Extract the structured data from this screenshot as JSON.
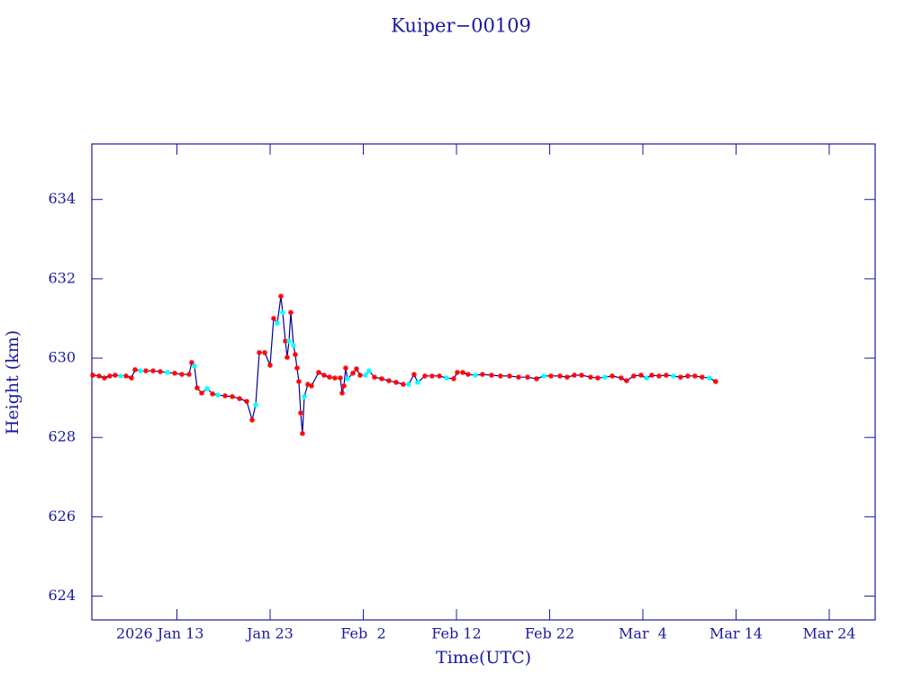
{
  "chart_data": {
    "type": "line",
    "title": "Kuiper−00109",
    "xlabel": "Time(UTC)",
    "ylabel": "Height (km)",
    "xlim": [
      3.87,
      87.93
    ],
    "xticks": [
      {
        "value": 13,
        "label": "2026 Jan 13"
      },
      {
        "value": 23,
        "label": "Jan 23"
      },
      {
        "value": 33,
        "label": "Feb  2"
      },
      {
        "value": 43,
        "label": "Feb 12"
      },
      {
        "value": 53,
        "label": "Feb 22"
      },
      {
        "value": 63,
        "label": "Mar  4"
      },
      {
        "value": 73,
        "label": "Mar 14"
      },
      {
        "value": 83,
        "label": "Mar 24"
      }
    ],
    "ylim": [
      623.4,
      635.4
    ],
    "yticks": [
      624,
      626,
      628,
      630,
      632,
      634
    ],
    "series": [
      {
        "color": "#0000a0",
        "x": [
          3.97,
          4.64,
          5.22,
          5.8,
          6.38,
          6.96,
          7.54,
          8.12,
          8.51,
          9.09,
          9.67,
          10.44,
          11.21,
          11.99,
          12.76,
          13.53,
          14.3,
          14.59,
          14.88,
          15.17,
          15.66,
          16.24,
          16.82,
          17.4,
          18.17,
          18.94,
          19.72,
          20.49,
          21.07,
          21.45,
          21.84,
          22.42,
          23.0,
          23.38,
          23.77,
          24.16,
          24.35,
          24.64,
          24.83,
          25.03,
          25.22,
          25.51,
          25.7,
          25.89,
          26.09,
          26.28,
          26.47,
          26.67,
          27.05,
          27.44,
          28.21,
          28.79,
          29.37,
          29.95,
          30.53,
          30.73,
          30.92,
          31.11,
          31.31,
          31.89,
          32.27,
          32.66,
          33.24,
          33.62,
          34.2,
          34.98,
          35.75,
          36.52,
          37.29,
          37.87,
          38.45,
          38.84,
          39.61,
          40.38,
          41.16,
          41.93,
          42.7,
          43.09,
          43.67,
          44.25,
          45.02,
          45.79,
          46.76,
          47.72,
          48.69,
          49.66,
          50.62,
          51.59,
          52.36,
          53.14,
          54.1,
          54.87,
          55.65,
          56.42,
          57.39,
          58.16,
          58.93,
          59.71,
          60.67,
          61.25,
          62.02,
          62.8,
          63.38,
          63.96,
          64.73,
          65.5,
          66.27,
          67.05,
          67.82,
          68.59,
          69.36,
          70.14,
          70.81
        ],
        "values": [
          629.57,
          629.55,
          629.5,
          629.55,
          629.57,
          629.55,
          629.55,
          629.5,
          629.71,
          629.68,
          629.68,
          629.68,
          629.66,
          629.64,
          629.62,
          629.59,
          629.59,
          629.89,
          629.8,
          629.25,
          629.12,
          629.23,
          629.1,
          629.07,
          629.05,
          629.03,
          628.98,
          628.91,
          628.44,
          628.82,
          630.14,
          630.14,
          629.82,
          631.0,
          630.88,
          631.56,
          631.15,
          630.43,
          630.02,
          630.43,
          631.15,
          630.32,
          630.09,
          629.75,
          629.41,
          628.62,
          628.1,
          629.03,
          629.34,
          629.3,
          629.64,
          629.57,
          629.52,
          629.5,
          629.5,
          629.12,
          629.3,
          629.75,
          629.48,
          629.62,
          629.73,
          629.57,
          629.57,
          629.68,
          629.52,
          629.48,
          629.43,
          629.39,
          629.34,
          629.34,
          629.59,
          629.39,
          629.55,
          629.55,
          629.55,
          629.5,
          629.48,
          629.64,
          629.64,
          629.59,
          629.57,
          629.59,
          629.57,
          629.55,
          629.55,
          629.52,
          629.52,
          629.48,
          629.55,
          629.55,
          629.55,
          629.52,
          629.57,
          629.57,
          629.52,
          629.5,
          629.52,
          629.55,
          629.5,
          629.43,
          629.55,
          629.57,
          629.5,
          629.57,
          629.55,
          629.57,
          629.55,
          629.52,
          629.55,
          629.55,
          629.52,
          629.5,
          629.41
        ],
        "marker_colors": [
          "#ff0000",
          "#ff0000",
          "#ff0000",
          "#ff0000",
          "#ff0000",
          "#00ffff",
          "#ff0000",
          "#ff0000",
          "#ff0000",
          "#00ffff",
          "#ff0000",
          "#ff0000",
          "#ff0000",
          "#00ffff",
          "#ff0000",
          "#ff0000",
          "#ff0000",
          "#ff0000",
          "#00ffff",
          "#ff0000",
          "#ff0000",
          "#00ffff",
          "#ff0000",
          "#00ffff",
          "#ff0000",
          "#ff0000",
          "#ff0000",
          "#ff0000",
          "#ff0000",
          "#00ffff",
          "#ff0000",
          "#ff0000",
          "#ff0000",
          "#ff0000",
          "#00ffff",
          "#ff0000",
          "#00ffff",
          "#ff0000",
          "#ff0000",
          "#00ffff",
          "#ff0000",
          "#00ffff",
          "#ff0000",
          "#ff0000",
          "#ff0000",
          "#ff0000",
          "#ff0000",
          "#00ffff",
          "#ff0000",
          "#ff0000",
          "#ff0000",
          "#ff0000",
          "#ff0000",
          "#ff0000",
          "#ff0000",
          "#ff0000",
          "#ff0000",
          "#ff0000",
          "#00ffff",
          "#ff0000",
          "#ff0000",
          "#ff0000",
          "#00ffff",
          "#00ffff",
          "#ff0000",
          "#ff0000",
          "#ff0000",
          "#ff0000",
          "#ff0000",
          "#00ffff",
          "#ff0000",
          "#00ffff",
          "#ff0000",
          "#ff0000",
          "#ff0000",
          "#00ffff",
          "#ff0000",
          "#ff0000",
          "#ff0000",
          "#ff0000",
          "#00ffff",
          "#ff0000",
          "#ff0000",
          "#ff0000",
          "#ff0000",
          "#ff0000",
          "#ff0000",
          "#ff0000",
          "#00ffff",
          "#ff0000",
          "#ff0000",
          "#ff0000",
          "#ff0000",
          "#ff0000",
          "#ff0000",
          "#ff0000",
          "#00ffff",
          "#ff0000",
          "#ff0000",
          "#ff0000",
          "#ff0000",
          "#ff0000",
          "#00ffff",
          "#ff0000",
          "#ff0000",
          "#ff0000",
          "#00ffff",
          "#ff0000",
          "#ff0000",
          "#ff0000",
          "#ff0000",
          "#00ffff",
          "#ff0000"
        ]
      }
    ]
  }
}
